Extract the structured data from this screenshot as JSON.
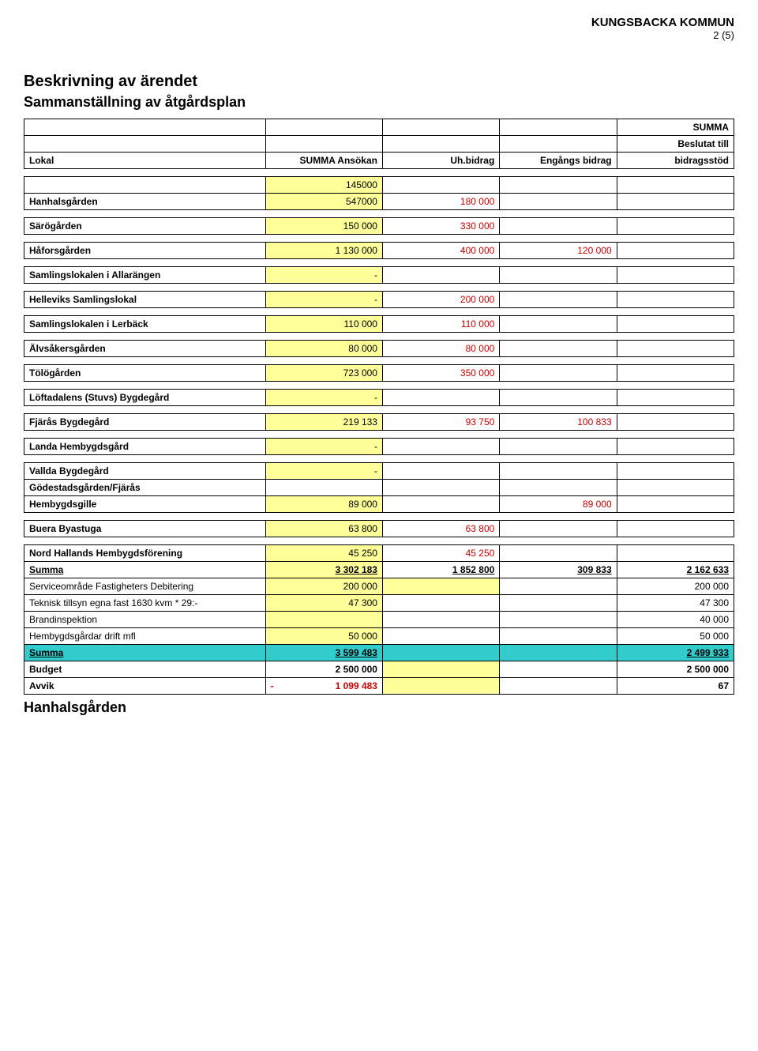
{
  "header": {
    "org": "KUNGSBACKA KOMMUN",
    "page": "2 (5)"
  },
  "titles": {
    "t1": "Beskrivning av ärendet",
    "t2": "Sammanställning av åtgårdsplan"
  },
  "columns": {
    "c0": "Lokal",
    "c1": "SUMMA Ansökan",
    "c2": "Uh.bidrag",
    "c3": "Engångs bidrag",
    "c4a": "SUMMA",
    "c4b": "Beslutat till",
    "c4c": "bidragsstöd"
  },
  "rows": {
    "r0_extra_a": "145000",
    "r0_label": "Hanhalsgården",
    "r0_a": "547000",
    "r0_b": "180 000",
    "r1_label": "Särögården",
    "r1_a": "150 000",
    "r1_b": "330 000",
    "r2_label": "Håforsgården",
    "r2_a": "1 130 000",
    "r2_b": "400 000",
    "r2_c": "120 000",
    "r3_label": "Samlingslokalen i Allarängen",
    "r3_a": "-",
    "r4_label": "Helleviks Samlingslokal",
    "r4_a": "-",
    "r4_b": "200 000",
    "r5_label": "Samlingslokalen i Lerbäck",
    "r5_a": "110 000",
    "r5_b": "110 000",
    "r6_label": "Älvsåkersgården",
    "r6_a": "80 000",
    "r6_b": "80 000",
    "r7_label": "Tölögården",
    "r7_a": "723 000",
    "r7_b": "350 000",
    "r8_label": "Löftadalens (Stuvs) Bygdegård",
    "r8_a": "-",
    "r9_label": "Fjärås Bygdegård",
    "r9_a": "219 133",
    "r9_b": "93 750",
    "r9_c": "100 833",
    "r10_label": "Landa Hembygdsgård",
    "r10_a": "-",
    "r11_label": "Vallda Bygdegård",
    "r11_a": "-",
    "r12_label_a": "Gödestadsgården/Fjärås",
    "r12_label_b": "Hembygdsgille",
    "r12_a": "89 000",
    "r12_c": "89 000",
    "r13_label": "Buera Byastuga",
    "r13_a": "63 800",
    "r13_b": "63 800",
    "r14_label": "Nord Hallands Hembygdsförening",
    "r14_a": "45 250",
    "r14_b": "45 250",
    "sum1_label": "Summa",
    "sum1_a": "3 302 183",
    "sum1_b": "1 852 800",
    "sum1_c": "309 833",
    "sum1_d": "2 162 633",
    "r15_label": "Serviceområde Fastigheters Debitering",
    "r15_a": "200 000",
    "r15_d": "200 000",
    "r16_label": "Teknisk tillsyn egna fast 1630 kvm * 29:-",
    "r16_a": "47 300",
    "r16_d": "47 300",
    "r17_label": "Brandinspektion",
    "r17_d": "40 000",
    "r18_label": "Hembygdsgårdar drift mfl",
    "r18_a": "50 000",
    "r18_d": "50 000",
    "sum2_label": "Summa",
    "sum2_a": "3 599 483",
    "sum2_d": "2 499 933",
    "budget_label": "Budget",
    "budget_a": "2 500 000",
    "budget_d": "2 500 000",
    "avvik_label": "Avvik",
    "avvik_minus": "-",
    "avvik_a": "1 099 483",
    "avvik_d": "67"
  },
  "footer_label": "Hanhalsgården"
}
